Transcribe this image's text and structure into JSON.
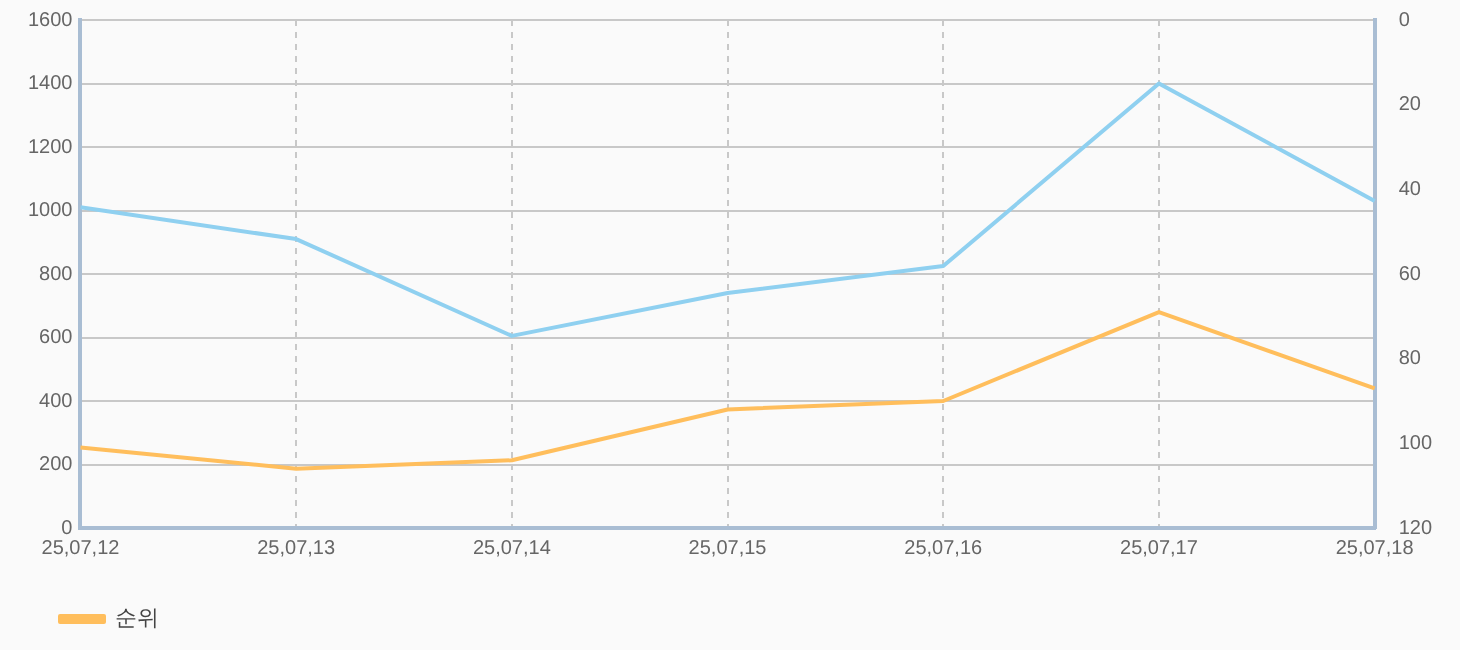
{
  "chart_data": {
    "type": "line",
    "categories": [
      "25,07,12",
      "25,07,13",
      "25,07,14",
      "25,07,15",
      "25,07,16",
      "25,07,17",
      "25,07,18"
    ],
    "series": [
      {
        "color": "#8fd0f0",
        "values": [
          1010,
          910,
          605,
          740,
          825,
          1400,
          1030
        ]
      },
      {
        "name": "순위",
        "color": "#ffbe5c",
        "axis": "y2",
        "values": [
          101,
          106,
          104,
          92,
          90,
          69,
          87
        ]
      }
    ],
    "ylim": [
      0,
      1600
    ],
    "yticks": [
      0,
      200,
      400,
      600,
      800,
      1000,
      1200,
      1400,
      1600
    ],
    "y2lim": [
      120,
      0
    ],
    "y2ticks": [
      0,
      20,
      40,
      60,
      80,
      100,
      120
    ],
    "grid": true,
    "legend": "bottom",
    "marker": "none",
    "line_style": "solid"
  }
}
